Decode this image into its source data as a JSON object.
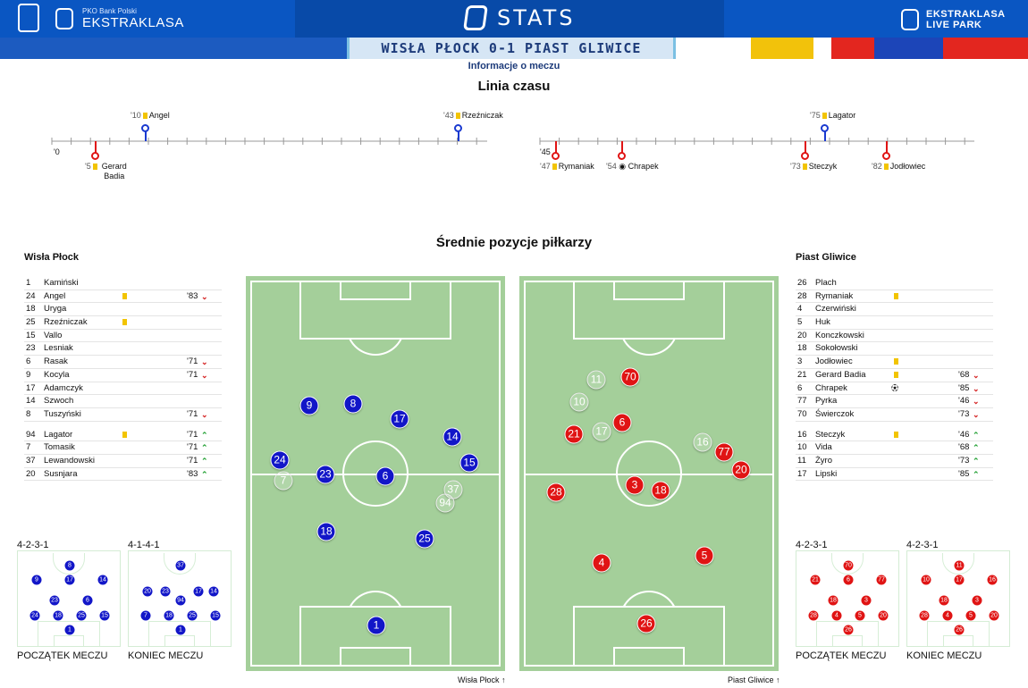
{
  "header": {
    "bank": "PKO Bank Polski",
    "league": "EKSTRAKLASA",
    "stats": "STATS",
    "live_top": "EKSTRAKLASA",
    "live_bottom": "LIVE PARK"
  },
  "match": {
    "title": "WISŁA PŁOCK 0-1 PIAST GLIWICE",
    "info_link": "Informacje o meczu"
  },
  "timeline": {
    "title": "Linia czasu",
    "first_half": {
      "start": "'0",
      "events_top": [
        {
          "min": "'10",
          "name": "Angel"
        },
        {
          "min": "'43",
          "name": "Rzeźniczak"
        }
      ],
      "events_bottom": [
        {
          "min": "'5",
          "name": "Gerard Badia"
        }
      ]
    },
    "second_half": {
      "start": "'45",
      "events_top": [
        {
          "min": "'75",
          "name": "Lagator"
        }
      ],
      "events_bottom": [
        {
          "min": "'47",
          "name": "Rymaniak"
        },
        {
          "min": "'54",
          "name": "Chrapek"
        },
        {
          "min": "'73",
          "name": "Steczyk"
        },
        {
          "min": "'82",
          "name": "Jodłowiec"
        }
      ]
    }
  },
  "positions": {
    "title": "Średnie pozycje piłkarzy"
  },
  "home": {
    "name": "Wisła Płock",
    "starters": [
      {
        "n": "1",
        "name": "Kamiński"
      },
      {
        "n": "24",
        "name": "Angel",
        "card": true,
        "sub": "'83",
        "dir": "down"
      },
      {
        "n": "18",
        "name": "Uryga"
      },
      {
        "n": "25",
        "name": "Rzeźniczak",
        "card": true
      },
      {
        "n": "15",
        "name": "Vallo"
      },
      {
        "n": "23",
        "name": "Lesniak"
      },
      {
        "n": "6",
        "name": "Rasak",
        "sub": "'71",
        "dir": "down"
      },
      {
        "n": "9",
        "name": "Kocyla",
        "sub": "'71",
        "dir": "down"
      },
      {
        "n": "17",
        "name": "Adamczyk"
      },
      {
        "n": "14",
        "name": "Szwoch"
      },
      {
        "n": "8",
        "name": "Tuszyński",
        "sub": "'71",
        "dir": "down"
      }
    ],
    "subs": [
      {
        "n": "94",
        "name": "Lagator",
        "card": true,
        "sub": "'71",
        "dir": "up"
      },
      {
        "n": "7",
        "name": "Tomasik",
        "sub": "'71",
        "dir": "up"
      },
      {
        "n": "37",
        "name": "Lewandowski",
        "sub": "'71",
        "dir": "up"
      },
      {
        "n": "20",
        "name": "Susnjara",
        "sub": "'83",
        "dir": "up"
      }
    ],
    "formation_start": "4-2-3-1",
    "formation_end": "4-1-4-1",
    "label_start": "POCZĄTEK MECZU",
    "label_end": "KONIEC MECZU",
    "pitch_label": "Wisła Płock"
  },
  "away": {
    "name": "Piast Gliwice",
    "starters": [
      {
        "n": "26",
        "name": "Plach"
      },
      {
        "n": "28",
        "name": "Rymaniak",
        "card": true
      },
      {
        "n": "4",
        "name": "Czerwiński"
      },
      {
        "n": "5",
        "name": "Huk"
      },
      {
        "n": "20",
        "name": "Konczkowski"
      },
      {
        "n": "18",
        "name": "Sokołowski"
      },
      {
        "n": "3",
        "name": "Jodłowiec",
        "card": true
      },
      {
        "n": "21",
        "name": "Gerard Badia",
        "card": true,
        "sub": "'68",
        "dir": "down"
      },
      {
        "n": "6",
        "name": "Chrapek",
        "goal": true,
        "sub": "'85",
        "dir": "down"
      },
      {
        "n": "77",
        "name": "Pyrka",
        "sub": "'46",
        "dir": "down"
      },
      {
        "n": "70",
        "name": "Świerczok",
        "sub": "'73",
        "dir": "down"
      }
    ],
    "subs": [
      {
        "n": "16",
        "name": "Steczyk",
        "card": true,
        "sub": "'46",
        "dir": "up"
      },
      {
        "n": "10",
        "name": "Vida",
        "sub": "'68",
        "dir": "up"
      },
      {
        "n": "11",
        "name": "Żyro",
        "sub": "'73",
        "dir": "up"
      },
      {
        "n": "17",
        "name": "Lipski",
        "sub": "'85",
        "dir": "up"
      }
    ],
    "formation_start": "4-2-3-1",
    "formation_end": "4-2-3-1",
    "label_start": "POCZĄTEK MECZU",
    "label_end": "KONIEC MECZU",
    "pitch_label": "Piast Gliwice"
  },
  "colors": {
    "home": "#1216c8",
    "away": "#e01414",
    "pitch": "#a4cf9a",
    "card": "#f2c400"
  }
}
